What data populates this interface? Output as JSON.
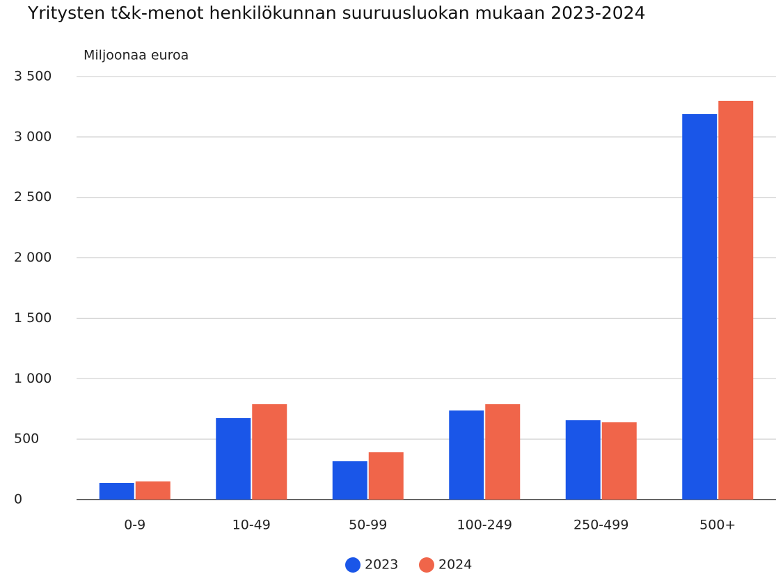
{
  "chart_data": {
    "type": "bar",
    "title": "Yritysten t&k-menot henkilökunnan suuruusluokan mukaan 2023-2024",
    "y_label": "Miljoonaa euroa",
    "categories": [
      "0-9",
      "10-49",
      "50-99",
      "100-249",
      "250-499",
      "500+"
    ],
    "series": [
      {
        "name": "2023",
        "color": "#1a56e8",
        "values": [
          138,
          674,
          317,
          737,
          656,
          3189
        ]
      },
      {
        "name": "2024",
        "color": "#f0654a",
        "values": [
          150,
          789,
          391,
          789,
          639,
          3299
        ]
      }
    ],
    "ylim": [
      0,
      3500
    ],
    "yticks": [
      0,
      500,
      {
        "value": 1000,
        "label": "1 000"
      },
      {
        "value": 1500,
        "label": "1 500"
      },
      {
        "value": 2000,
        "label": "2 000"
      },
      {
        "value": 2500,
        "label": "2 500"
      },
      {
        "value": 3000,
        "label": "3 000"
      },
      {
        "value": 3500,
        "label": "3 500"
      }
    ],
    "grid": true
  }
}
